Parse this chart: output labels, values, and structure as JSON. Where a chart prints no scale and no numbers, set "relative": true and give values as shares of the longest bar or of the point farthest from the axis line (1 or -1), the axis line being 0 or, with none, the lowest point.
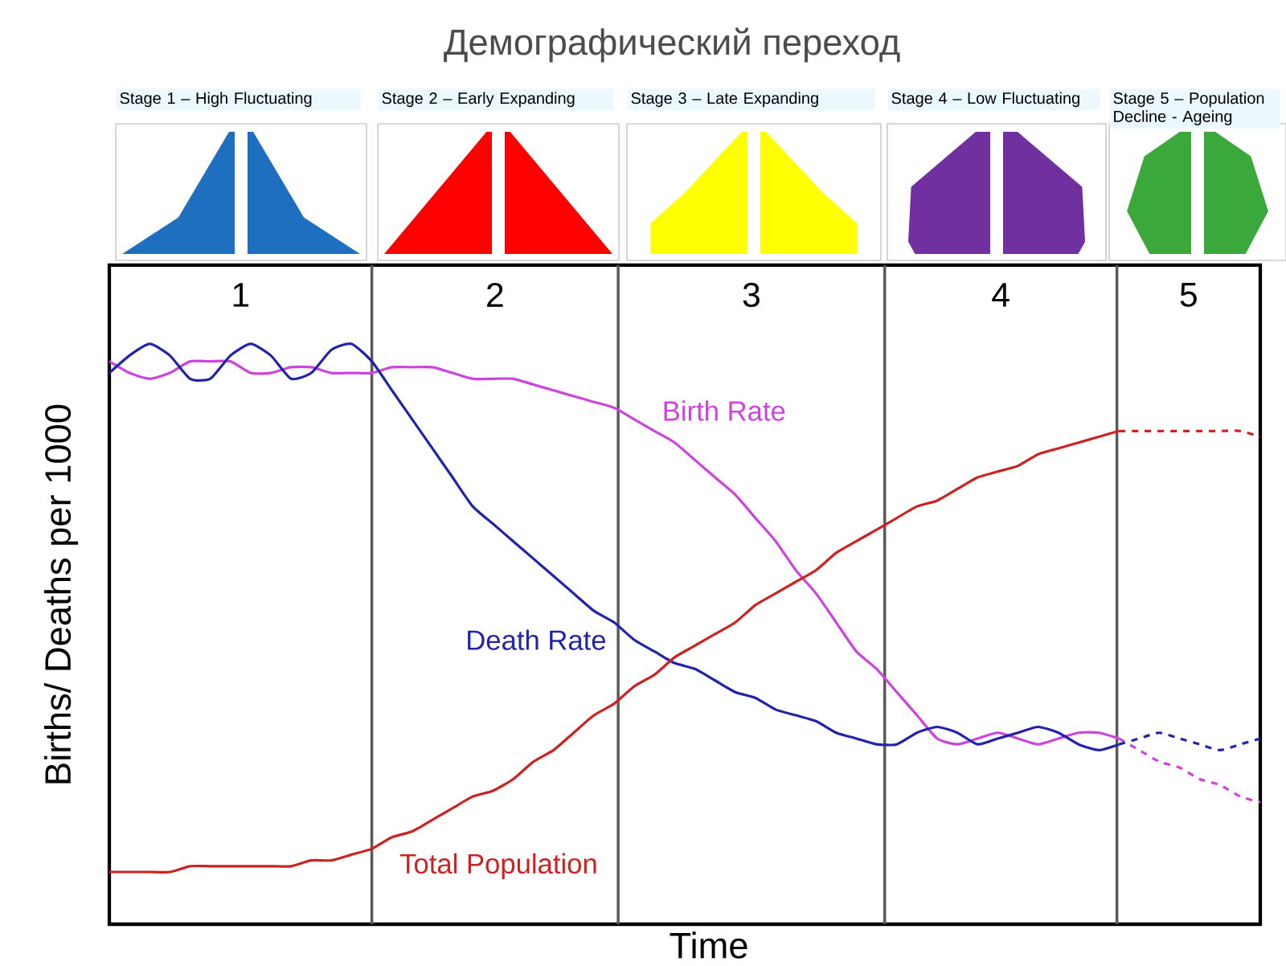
{
  "chart_data": {
    "type": "line",
    "title": "Демографический переход",
    "xlabel": "Time",
    "ylabel": "Births/ Deaths per 1000",
    "relative": true,
    "grid": "x",
    "tick_labels": false,
    "legend": false,
    "marker": "none",
    "categories": [
      null,
      null,
      null,
      null,
      null,
      null,
      null,
      null,
      null,
      null,
      null,
      null,
      null,
      null,
      null,
      null,
      null,
      null,
      null,
      null,
      null,
      null,
      null,
      null,
      null,
      null,
      null,
      null,
      null,
      null,
      null,
      null,
      null,
      null,
      null,
      null,
      null,
      null,
      null,
      null,
      null,
      null,
      null,
      null,
      null,
      null,
      null,
      null,
      null,
      null,
      null,
      null,
      null,
      null,
      null,
      null,
      null,
      null
    ],
    "series": [
      {
        "name": "Birth Rate",
        "color": "#cc44dd",
        "line_style": "solid",
        "values": [
          0.97,
          0.95,
          0.94,
          0.95,
          0.97,
          0.97,
          0.97,
          0.95,
          0.95,
          0.96,
          0.96,
          0.95,
          0.95,
          0.95,
          0.96,
          0.96,
          0.96,
          0.95,
          0.94,
          0.94,
          0.94,
          0.93,
          0.92,
          0.91,
          0.9,
          0.89,
          0.87,
          0.85,
          0.83,
          0.8,
          0.77,
          0.74,
          0.7,
          0.66,
          0.61,
          0.57,
          0.52,
          0.47,
          0.44,
          0.4,
          0.36,
          0.32,
          0.31,
          0.32,
          0.33,
          0.32,
          0.31,
          0.32,
          0.33,
          0.33,
          0.32,
          null,
          null,
          null,
          null,
          null,
          null,
          null
        ]
      },
      {
        "name": "Death Rate",
        "color": "#2222aa",
        "line_style": "solid",
        "values": [
          0.95,
          0.98,
          1.0,
          0.98,
          0.94,
          0.94,
          0.98,
          1.0,
          0.98,
          0.94,
          0.95,
          0.99,
          1.0,
          0.97,
          0.92,
          0.87,
          0.82,
          0.77,
          0.72,
          0.69,
          0.66,
          0.63,
          0.6,
          0.57,
          0.54,
          0.52,
          0.49,
          0.47,
          0.45,
          0.44,
          0.42,
          0.4,
          0.39,
          0.37,
          0.36,
          0.35,
          0.33,
          0.32,
          0.31,
          0.31,
          0.33,
          0.34,
          0.33,
          0.31,
          0.32,
          0.33,
          0.34,
          0.33,
          0.31,
          0.3,
          0.31,
          null,
          null,
          null,
          null,
          null,
          null,
          null
        ]
      },
      {
        "name": "Total Population",
        "color": "#cc2222",
        "line_style": "solid",
        "values": [
          0.09,
          0.09,
          0.09,
          0.09,
          0.1,
          0.1,
          0.1,
          0.1,
          0.1,
          0.1,
          0.11,
          0.11,
          0.12,
          0.13,
          0.15,
          0.16,
          0.18,
          0.2,
          0.22,
          0.23,
          0.25,
          0.28,
          0.3,
          0.33,
          0.36,
          0.38,
          0.41,
          0.43,
          0.46,
          0.48,
          0.5,
          0.52,
          0.55,
          0.57,
          0.59,
          0.61,
          0.64,
          0.66,
          0.68,
          0.7,
          0.72,
          0.73,
          0.75,
          0.77,
          0.78,
          0.79,
          0.81,
          0.82,
          0.83,
          0.84,
          0.85,
          null,
          null,
          null,
          null,
          null,
          null,
          null
        ]
      },
      {
        "color": "#cc44dd",
        "line_style": "dashed",
        "values": [
          null,
          null,
          null,
          null,
          null,
          null,
          null,
          null,
          null,
          null,
          null,
          null,
          null,
          null,
          null,
          null,
          null,
          null,
          null,
          null,
          null,
          null,
          null,
          null,
          null,
          null,
          null,
          null,
          null,
          null,
          null,
          null,
          null,
          null,
          null,
          null,
          null,
          null,
          null,
          null,
          null,
          null,
          null,
          null,
          null,
          null,
          null,
          null,
          null,
          null,
          0.32,
          0.3,
          0.28,
          0.27,
          0.25,
          0.24,
          0.22,
          0.21
        ]
      },
      {
        "color": "#2222aa",
        "line_style": "dashed",
        "values": [
          null,
          null,
          null,
          null,
          null,
          null,
          null,
          null,
          null,
          null,
          null,
          null,
          null,
          null,
          null,
          null,
          null,
          null,
          null,
          null,
          null,
          null,
          null,
          null,
          null,
          null,
          null,
          null,
          null,
          null,
          null,
          null,
          null,
          null,
          null,
          null,
          null,
          null,
          null,
          null,
          null,
          null,
          null,
          null,
          null,
          null,
          null,
          null,
          null,
          null,
          0.31,
          0.32,
          0.33,
          0.32,
          0.31,
          0.3,
          0.31,
          0.32
        ]
      },
      {
        "color": "#cc2222",
        "line_style": "dashed",
        "values": [
          null,
          null,
          null,
          null,
          null,
          null,
          null,
          null,
          null,
          null,
          null,
          null,
          null,
          null,
          null,
          null,
          null,
          null,
          null,
          null,
          null,
          null,
          null,
          null,
          null,
          null,
          null,
          null,
          null,
          null,
          null,
          null,
          null,
          null,
          null,
          null,
          null,
          null,
          null,
          null,
          null,
          null,
          null,
          null,
          null,
          null,
          null,
          null,
          null,
          null,
          0.85,
          0.85,
          0.85,
          0.85,
          0.85,
          0.85,
          0.85,
          0.84
        ]
      }
    ],
    "annotations": [
      "Stage 1 – High Fluctuating",
      "Stage 2 – Early Expanding",
      "Stage 3 – Late Expanding",
      "Stage 4 – Low Fluctuating",
      "Stage 5 – Population Decline - Ageing",
      "1",
      "2",
      "3",
      "4",
      "5"
    ]
  }
}
